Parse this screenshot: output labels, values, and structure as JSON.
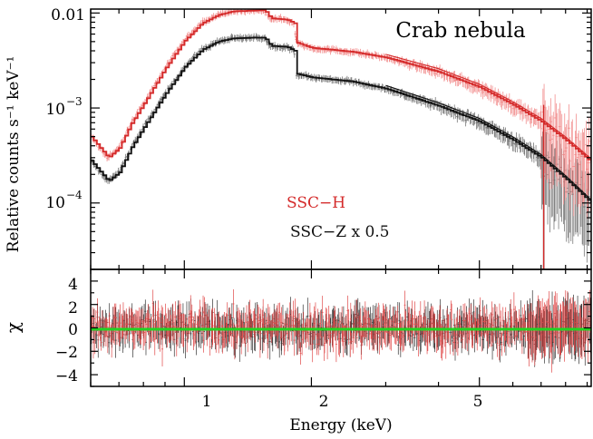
{
  "chart_data": [
    {
      "type": "line",
      "panel": "spectrum",
      "title": "Crab nebula",
      "xlabel": "Energy (keV)",
      "ylabel": "Relative counts s⁻¹ keV⁻¹",
      "xscale": "log",
      "yscale": "log",
      "xlim": [
        0.6,
        9.2
      ],
      "ylim": [
        2e-05,
        0.011
      ],
      "y_tick_labels": [
        {
          "value": 0.01,
          "label": "0.01"
        },
        {
          "value": 0.001,
          "base": "10",
          "exp": "−3"
        },
        {
          "value": 0.0001,
          "base": "10",
          "exp": "−4"
        }
      ],
      "series": [
        {
          "name": "SSC−H",
          "color": "#d42a2a",
          "x": [
            0.6,
            0.66,
            0.7,
            0.75,
            0.8,
            0.9,
            1.0,
            1.1,
            1.2,
            1.3,
            1.45,
            1.55,
            1.6,
            1.75,
            1.82,
            1.84,
            2.0,
            2.5,
            3.0,
            4.0,
            5.0,
            6.0,
            7.0,
            8.0,
            9.2
          ],
          "values": [
            0.0005,
            0.0003,
            0.00038,
            0.0007,
            0.0011,
            0.0026,
            0.0051,
            0.0078,
            0.0095,
            0.0104,
            0.0106,
            0.0107,
            0.0088,
            0.0085,
            0.0078,
            0.0049,
            0.0043,
            0.0039,
            0.0034,
            0.0024,
            0.00165,
            0.00108,
            0.00072,
            0.00046,
            0.00027
          ]
        },
        {
          "name": "SSC−Z x 0.5",
          "color": "#111111",
          "x": [
            0.6,
            0.66,
            0.7,
            0.75,
            0.8,
            0.9,
            1.0,
            1.1,
            1.2,
            1.3,
            1.45,
            1.55,
            1.6,
            1.75,
            1.82,
            1.84,
            2.0,
            2.5,
            3.0,
            4.0,
            5.0,
            6.0,
            7.0,
            8.0,
            9.2
          ],
          "values": [
            0.00028,
            0.00017,
            0.00021,
            0.00039,
            0.00062,
            0.0014,
            0.0027,
            0.0041,
            0.005,
            0.0054,
            0.0055,
            0.0055,
            0.0045,
            0.0044,
            0.004,
            0.0023,
            0.0021,
            0.0019,
            0.0016,
            0.00105,
            0.00072,
            0.00046,
            0.0003,
            0.00018,
            0.0001
          ]
        }
      ],
      "legend": [
        {
          "label": "SSC−H",
          "color": "#d42a2a"
        },
        {
          "label": "SSC−Z x 0.5",
          "color": "#111111"
        }
      ],
      "annotations": [
        "Crab nebula"
      ]
    },
    {
      "type": "line",
      "panel": "residuals",
      "xlabel": "Energy (keV)",
      "ylabel": "χ",
      "xscale": "log",
      "xlim": [
        0.6,
        9.2
      ],
      "ylim": [
        -5,
        5
      ],
      "x_ticks": [
        1,
        2,
        5
      ],
      "x_tick_labels": [
        "1",
        "2",
        "5"
      ],
      "y_ticks": [
        4,
        2,
        0,
        -2,
        -4
      ],
      "y_tick_labels": [
        "4",
        "2",
        "0",
        "−2",
        "−4"
      ],
      "series": [
        {
          "name": "SSC−H residuals",
          "color": "#d42a2a",
          "scatter_sigma": 1.0
        },
        {
          "name": "SSC−Z residuals",
          "color": "#111111",
          "scatter_sigma": 0.9
        }
      ],
      "zero_line": {
        "value": 0,
        "color": "#22d422"
      }
    }
  ]
}
